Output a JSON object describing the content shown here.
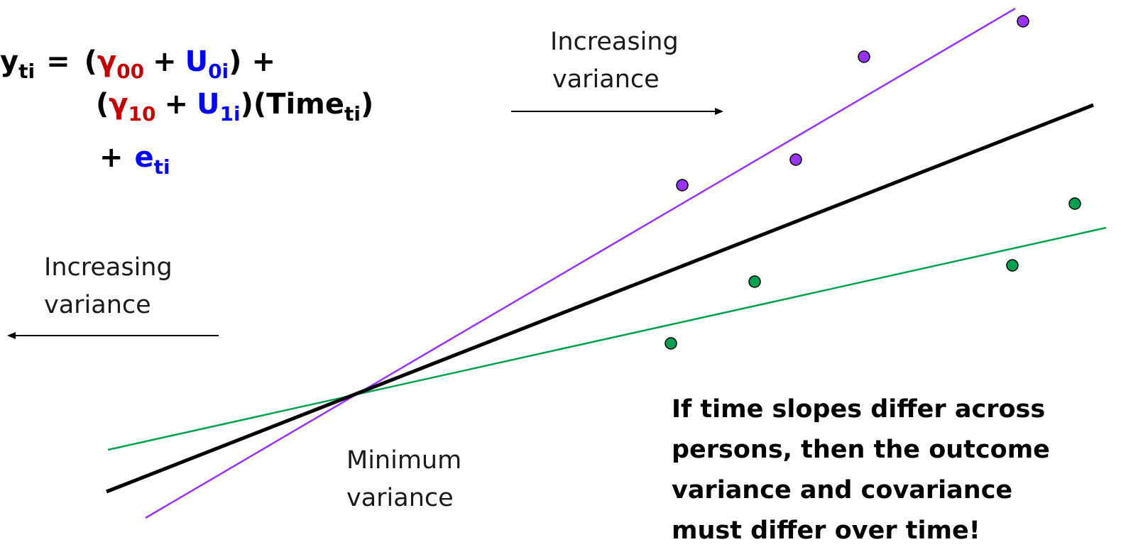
{
  "colors": {
    "fixed_effect": "#c00000",
    "random_effect": "#0000ff",
    "mean_line": "#000000",
    "person_high": "#9933ff",
    "person_low": "#00a050"
  },
  "equation": {
    "y": "y",
    "y_sub": "ti",
    "equals": "=",
    "open1": "(",
    "g00": "γ",
    "g00_sub": "00",
    "plus1": "+",
    "u0": "U",
    "u0_sub": "0i",
    "close1": ")",
    "plus2": "+",
    "open2": "(",
    "g10": "γ",
    "g10_sub": "10",
    "plus3": "+",
    "u1": "U",
    "u1_sub": "1i",
    "close2": ")",
    "time_open": "(Time",
    "time_sub": "ti",
    "time_close": ")",
    "plus4": "+",
    "e": "e",
    "e_sub": "ti"
  },
  "labels": {
    "right_arrow_line1": "Increasing",
    "right_arrow_line2": "variance",
    "left_arrow_line1": "Increasing",
    "left_arrow_line2": "variance",
    "min_line1": "Minimum",
    "min_line2": "variance"
  },
  "note": {
    "line1": "If time slopes differ across",
    "line2": "persons, then the outcome",
    "line3": "variance and covariance",
    "line4": "must differ over time!"
  },
  "icons": [
    "arrow-right-icon",
    "arrow-left-icon"
  ]
}
